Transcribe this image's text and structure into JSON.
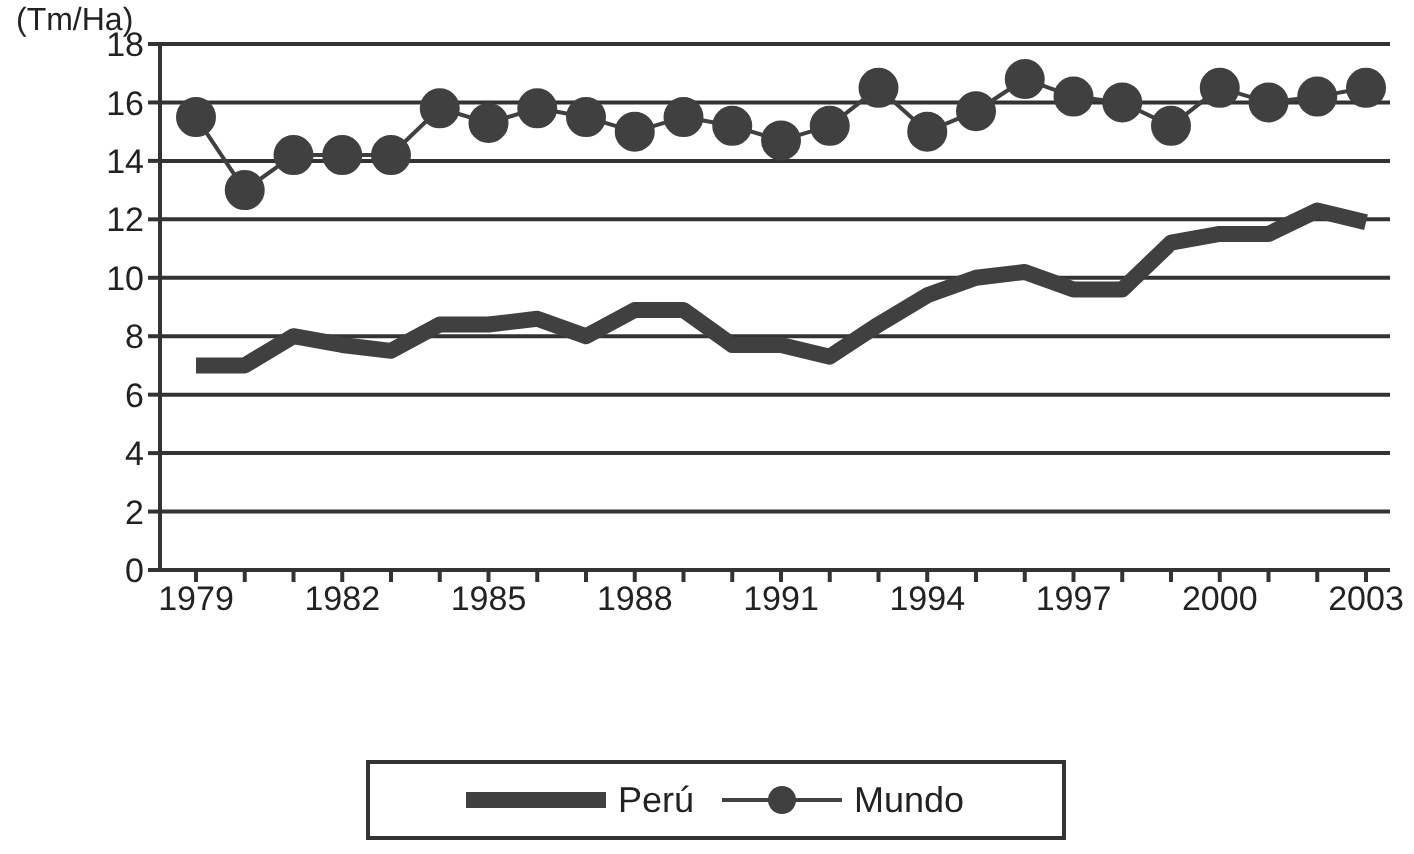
{
  "chart_data": {
    "type": "line",
    "ylabel": "(Tm/Ha)",
    "categories": [
      "1979",
      null,
      null,
      "1982",
      null,
      null,
      "1985",
      null,
      null,
      "1988",
      null,
      null,
      "1991",
      null,
      null,
      "1994",
      null,
      null,
      "1997",
      null,
      null,
      "2000",
      null,
      null,
      "2003"
    ],
    "series": [
      {
        "name": "Perú",
        "color": "#404040",
        "marker": "none",
        "values": [
          7,
          7,
          8,
          7.7,
          7.5,
          8.4,
          8.4,
          8.6,
          8,
          8.9,
          8.9,
          7.7,
          7.7,
          7.3,
          8.4,
          9.4,
          10,
          10.2,
          9.6,
          9.6,
          11.2,
          11.5,
          11.5,
          12.3,
          11.9
        ]
      },
      {
        "name": "Mundo",
        "color": "#404040",
        "marker": "circle",
        "values": [
          15.5,
          13,
          14.2,
          14.2,
          14.2,
          15.8,
          15.3,
          15.8,
          15.5,
          15,
          15.5,
          15.2,
          14.7,
          15.2,
          16.5,
          15,
          15.7,
          16.8,
          16.2,
          16,
          15.2,
          16.5,
          16,
          16.2,
          16.5
        ]
      }
    ],
    "ylim": [
      0,
      18
    ],
    "yticks": [
      0,
      2,
      4,
      6,
      8,
      10,
      12,
      14,
      16,
      18
    ],
    "grid": "y",
    "legend": "bottom"
  }
}
